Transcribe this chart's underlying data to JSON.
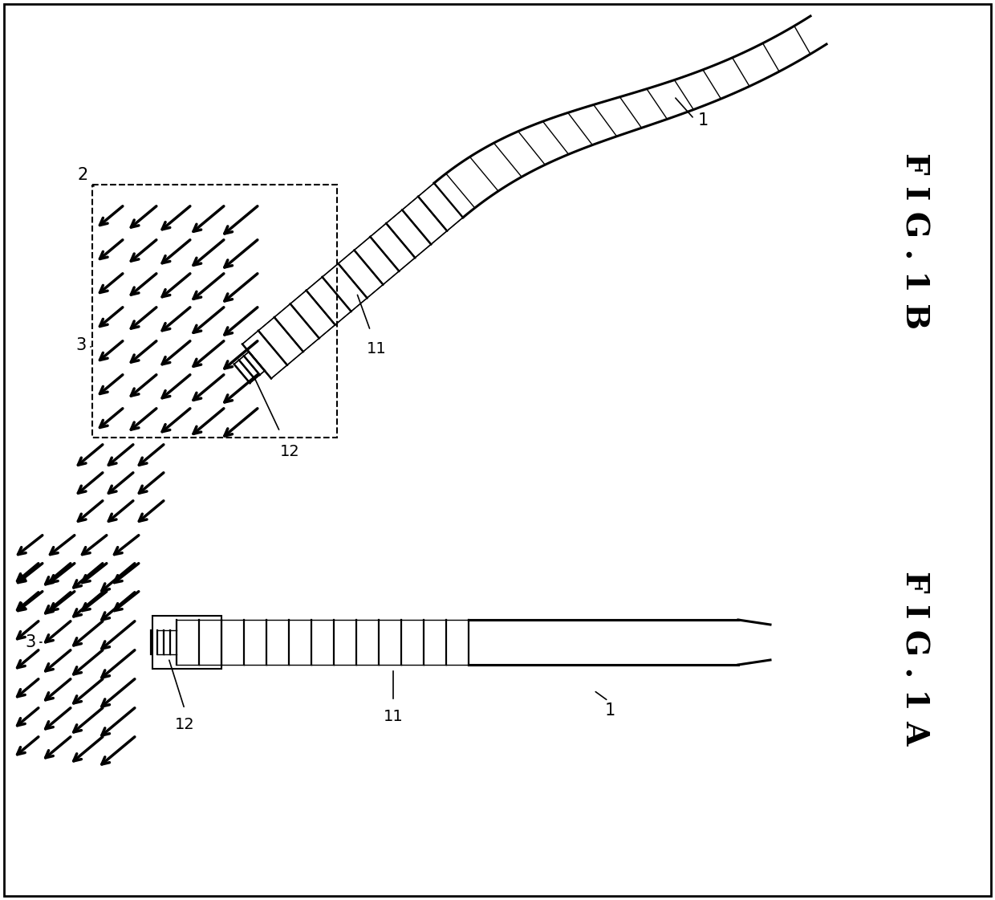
{
  "bg_color": "#ffffff",
  "line_color": "#000000",
  "fig_width": 12.4,
  "fig_height": 11.21,
  "fig1a_label": "F I G . 1 A",
  "fig1b_label": "F I G . 1 B"
}
